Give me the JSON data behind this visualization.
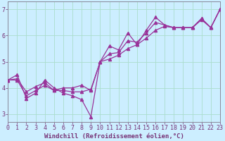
{
  "xlabel": "Windchill (Refroidissement éolien,°C)",
  "ylabel": "",
  "background_color": "#cceeff",
  "line_color": "#993399",
  "x_data": [
    0,
    1,
    2,
    3,
    4,
    5,
    6,
    7,
    8,
    9,
    10,
    11,
    12,
    13,
    14,
    15,
    16,
    17,
    18,
    19,
    20,
    21,
    22,
    23
  ],
  "y_scatter": [
    4.3,
    4.5,
    3.6,
    3.8,
    4.3,
    4.0,
    3.8,
    3.7,
    3.55,
    2.9,
    5.0,
    5.6,
    5.45,
    6.1,
    5.65,
    6.2,
    6.7,
    6.4,
    6.3,
    6.3,
    6.3,
    6.65,
    6.3,
    7.0
  ],
  "y_line1": [
    4.3,
    4.35,
    3.85,
    4.05,
    4.2,
    3.9,
    3.9,
    3.85,
    3.85,
    3.95,
    5.0,
    5.3,
    5.35,
    5.8,
    5.75,
    6.1,
    6.5,
    6.4,
    6.3,
    6.3,
    6.3,
    6.65,
    6.3,
    7.0
  ],
  "y_line2": [
    4.3,
    4.3,
    3.7,
    3.9,
    4.1,
    3.9,
    4.0,
    4.0,
    4.1,
    3.9,
    5.0,
    5.1,
    5.25,
    5.5,
    5.65,
    5.9,
    6.2,
    6.35,
    6.3,
    6.3,
    6.3,
    6.6,
    6.3,
    7.0
  ],
  "xlim": [
    0,
    23
  ],
  "ylim": [
    2.7,
    7.3
  ],
  "yticks": [
    3,
    4,
    5,
    6,
    7
  ],
  "xticks": [
    0,
    1,
    2,
    3,
    4,
    5,
    6,
    7,
    8,
    9,
    10,
    11,
    12,
    13,
    14,
    15,
    16,
    17,
    18,
    19,
    20,
    21,
    22,
    23
  ],
  "marker": "^",
  "marker_size": 3,
  "linewidth": 0.9,
  "xlabel_fontsize": 6.5,
  "tick_fontsize": 6,
  "grid_color": "#aaddcc",
  "axis_color": "#773377",
  "spine_color": "#888899"
}
